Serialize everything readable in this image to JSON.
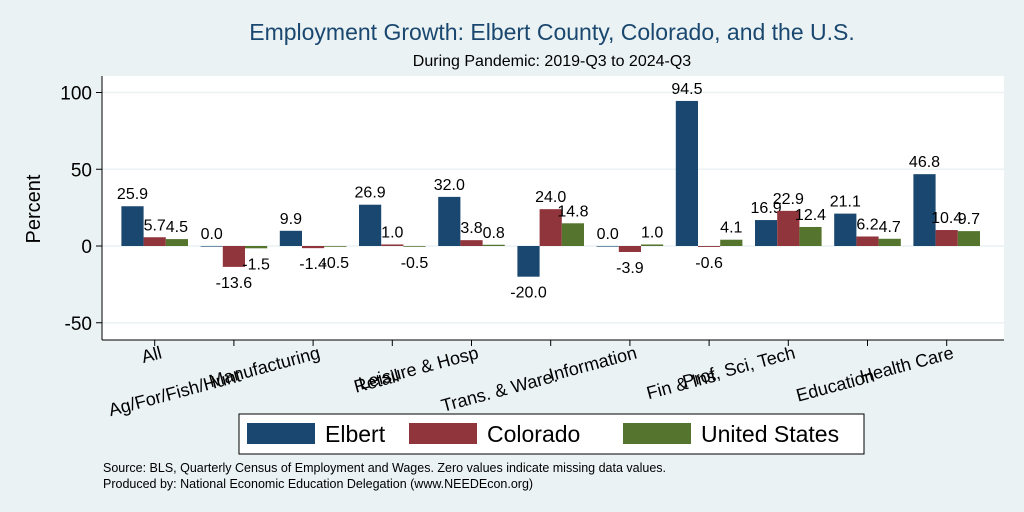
{
  "chart_data": {
    "type": "bar",
    "title": "Employment Growth: Elbert County, Colorado, and the U.S.",
    "subtitle": "During Pandemic: 2019-Q3 to 2024-Q3",
    "xlabel": "",
    "ylabel": "Percent",
    "ylim": [
      -60,
      110
    ],
    "yticks": [
      -50,
      0,
      50,
      100
    ],
    "ytick_labels": [
      "-50",
      "0",
      "50",
      "100"
    ],
    "grid": true,
    "legend_position": "bottom",
    "categories": [
      "All",
      "Ag/For/Fish/Hunt",
      "Manufacturing",
      "Retail",
      "Leisure & Hosp",
      "Trans. & Ware.",
      "Information",
      "Fin & Ins",
      "Prof, Sci, Tech",
      "Education",
      "Health Care"
    ],
    "series": [
      {
        "name": "Elbert",
        "color": "#1a476f",
        "values": [
          25.9,
          0.0,
          9.9,
          26.9,
          32.0,
          -20.0,
          0.0,
          94.5,
          16.9,
          21.1,
          46.8
        ],
        "labels": [
          "25.9",
          "0.0",
          "9.9",
          "26.9",
          "32.0",
          "-20.0",
          "0.0",
          "94.5",
          "16.9",
          "21.1",
          "46.8"
        ]
      },
      {
        "name": "Colorado",
        "color": "#90353b",
        "values": [
          5.7,
          -13.6,
          -1.4,
          1.0,
          3.8,
          24.0,
          -3.9,
          -0.6,
          22.9,
          6.2,
          10.4
        ],
        "labels": [
          "5.7",
          "-13.6",
          "-1.4",
          "1.0",
          "3.8",
          "24.0",
          "-3.9",
          "-0.6",
          "22.9",
          "6.2",
          "10.4"
        ]
      },
      {
        "name": "United States",
        "color": "#55752f",
        "values": [
          4.5,
          -1.5,
          -0.5,
          -0.5,
          0.8,
          14.8,
          1.0,
          4.1,
          12.4,
          4.7,
          9.7
        ],
        "labels": [
          "4.5",
          "-1.5",
          "-0.5",
          "-0.5",
          "0.8",
          "14.8",
          "1.0",
          "4.1",
          "12.4",
          "4.7",
          "9.7"
        ]
      }
    ],
    "notes": [
      "Source: BLS, Quarterly Census of Employment and Wages. Zero values indicate missing data values.",
      "Produced by: National Economic Education Delegation (www.NEEDEcon.org)"
    ]
  }
}
